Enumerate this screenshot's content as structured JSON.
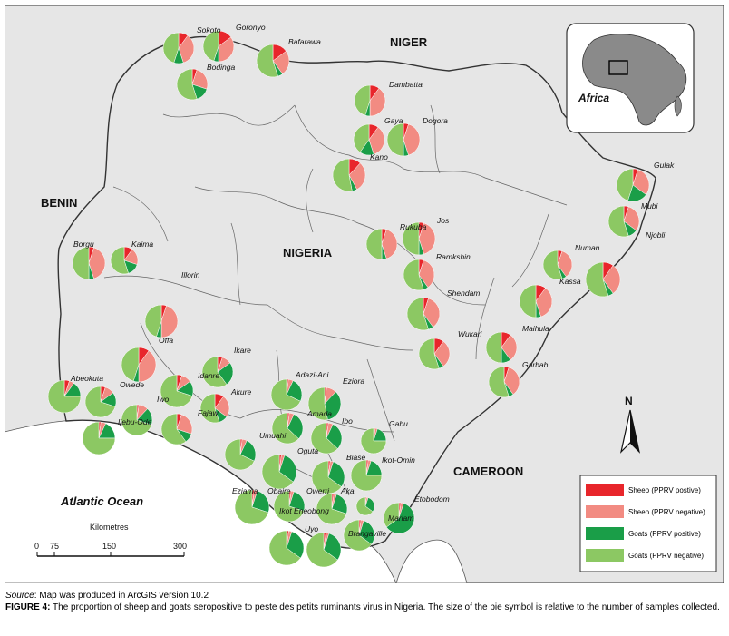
{
  "map": {
    "countries": {
      "niger": "NIGER",
      "benin": "BENIN",
      "nigeria": "NIGERIA",
      "cameroon": "CAMEROON"
    },
    "ocean": "Atlantic Ocean",
    "inset_label": "Africa",
    "north": "N",
    "scale": {
      "title": "Kilometres",
      "ticks": [
        "0",
        "75",
        "150",
        "300"
      ]
    },
    "legend": [
      {
        "label": "Sheep (PPRV postive)",
        "color": "#e8262b"
      },
      {
        "label": "Sheep (PPRV negative)",
        "color": "#f28b82"
      },
      {
        "label": "Goats (PPRV positive)",
        "color": "#1a9e48"
      },
      {
        "label": "Goats (PPRV negative)",
        "color": "#8cc863"
      }
    ],
    "places": [
      "Sokoto",
      "Goronyo",
      "Bafarawa",
      "Bodinga",
      "Dambatta",
      "Gaya",
      "Dogora",
      "Kano",
      "Gulak",
      "Mubi",
      "Njobli",
      "Numan",
      "Kassa",
      "Jos",
      "Rukuba",
      "Ramkshin",
      "Shendam",
      "Wukari",
      "Maihula",
      "Garbab",
      "Borgu",
      "Kaima",
      "Illorin",
      "Offa",
      "Ikare",
      "Abeokuta",
      "Owede",
      "Idanre",
      "Adazi-Ani",
      "Eziora",
      "Iwo",
      "Akure",
      "Fajaw",
      "Ijebu-Ode",
      "Amada",
      "Ibo",
      "Gabu",
      "Umuahi",
      "Oguta",
      "Biase",
      "Ikot-Omin",
      "Eziama",
      "Obaire",
      "Owerri",
      "Aka",
      "Ikot Eneobong",
      "Mariam",
      "Etobodom",
      "Uyo",
      "Brangaville"
    ]
  },
  "caption": {
    "source_label": "Source",
    "source_text": ": Map was produced in ArcGIS version 10.2",
    "figure_label": "FIGURE 4:",
    "figure_text": " The proportion of sheep and goats seropositive to peste des petits ruminants virus in Nigeria. The size of the pie symbol is relative to the number of samples collected."
  }
}
